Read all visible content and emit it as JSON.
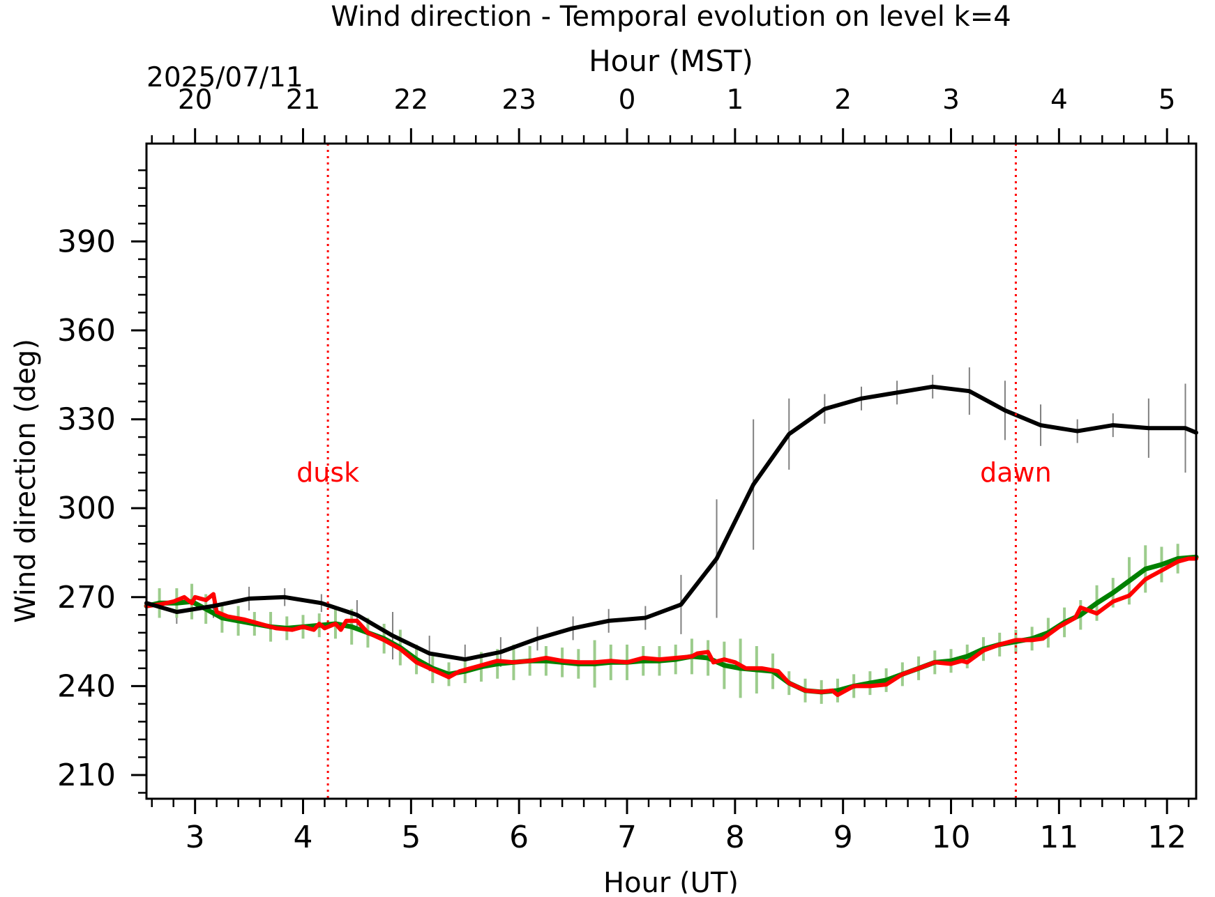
{
  "chart_data": {
    "type": "line",
    "title": "Wind direction - Temporal evolution on level k=4",
    "xlabel": "Hour (UT)",
    "top_xlabel": "Hour (MST)",
    "date_label": "2025/07/11",
    "ylabel": "Wind direction (deg)",
    "xlim": [
      2.55,
      12.27
    ],
    "ylim": [
      202,
      423
    ],
    "x_ticks": [
      3,
      4,
      5,
      6,
      7,
      8,
      9,
      10,
      11,
      12
    ],
    "x_tick_labels": [
      "3",
      "4",
      "5",
      "6",
      "7",
      "8",
      "9",
      "10",
      "11",
      "12"
    ],
    "top_x_ticks": [
      3,
      4,
      5,
      6,
      7,
      8,
      9,
      10,
      11,
      12
    ],
    "top_x_tick_labels": [
      "20",
      "21",
      "22",
      "23",
      "0",
      "1",
      "2",
      "3",
      "4",
      "5"
    ],
    "y_ticks": [
      210,
      240,
      270,
      300,
      330,
      360,
      390
    ],
    "y_tick_labels": [
      "210",
      "240",
      "270",
      "300",
      "330",
      "360",
      "390"
    ],
    "grid": false,
    "markers": [
      {
        "label": "dusk",
        "x": 4.23,
        "color": "#ff0000",
        "label_y": 309
      },
      {
        "label": "dawn",
        "x": 10.6,
        "color": "#ff0000",
        "label_y": 309
      }
    ],
    "series": [
      {
        "color": "#000000",
        "errorbar_color": "#808080",
        "line_width": 6,
        "x": [
          2.55,
          2.83,
          3.17,
          3.5,
          3.83,
          4.17,
          4.5,
          4.83,
          5.17,
          5.5,
          5.83,
          6.17,
          6.5,
          6.83,
          7.17,
          7.5,
          7.83,
          8.17,
          8.5,
          8.83,
          9.17,
          9.5,
          9.83,
          10.17,
          10.5,
          10.83,
          11.17,
          11.5,
          11.83,
          12.17,
          12.27
        ],
        "values": [
          268,
          265,
          267,
          269.5,
          270,
          268,
          264,
          257,
          251,
          249,
          251.5,
          256,
          259.5,
          262,
          263,
          267.5,
          283,
          308,
          325,
          333.5,
          337,
          339,
          341,
          339.5,
          333,
          328,
          326,
          328,
          327,
          327,
          325.5
        ],
        "err": [
          0,
          4,
          4,
          4,
          3,
          3,
          5,
          8,
          6,
          5,
          5,
          4,
          4,
          4,
          4,
          10,
          20,
          22,
          12,
          5,
          4,
          4,
          4,
          8,
          10,
          7,
          4,
          4,
          10,
          15,
          0
        ]
      },
      {
        "color": "#008000",
        "errorbar_color": "#9ccc8c",
        "line_width": 7,
        "x": [
          2.55,
          2.67,
          2.83,
          2.97,
          3.1,
          3.25,
          3.4,
          3.55,
          3.7,
          3.85,
          4.0,
          4.15,
          4.3,
          4.45,
          4.6,
          4.75,
          4.9,
          5.05,
          5.2,
          5.35,
          5.5,
          5.65,
          5.8,
          5.95,
          6.1,
          6.25,
          6.4,
          6.55,
          6.7,
          6.85,
          7.0,
          7.15,
          7.3,
          7.45,
          7.6,
          7.75,
          7.9,
          8.05,
          8.2,
          8.35,
          8.5,
          8.65,
          8.8,
          8.95,
          9.1,
          9.25,
          9.4,
          9.55,
          9.7,
          9.85,
          10.0,
          10.15,
          10.3,
          10.45,
          10.6,
          10.75,
          10.9,
          11.05,
          11.2,
          11.35,
          11.5,
          11.65,
          11.8,
          11.95,
          12.1,
          12.27
        ],
        "values": [
          267,
          268,
          268,
          268.5,
          266,
          263,
          262,
          261,
          260,
          259.5,
          260,
          260.5,
          261,
          260,
          258,
          256,
          253,
          249,
          246,
          244,
          245,
          246.5,
          247.5,
          248,
          248.5,
          248.5,
          248,
          247.5,
          247.5,
          248,
          248,
          248.5,
          248.5,
          249,
          250,
          249.5,
          247,
          246,
          245.5,
          245,
          241,
          238.5,
          238,
          238.5,
          240,
          241,
          242,
          244,
          246,
          248,
          248.5,
          250,
          252.5,
          254,
          255,
          256,
          258,
          261.5,
          264,
          268,
          271.5,
          275.5,
          279.5,
          281,
          283,
          283.5
        ],
        "err": [
          0,
          5,
          5,
          6,
          5,
          5,
          5,
          4,
          5,
          4,
          4,
          4,
          5,
          6,
          5,
          5,
          6,
          5,
          5,
          4,
          4,
          5,
          5,
          6,
          5,
          5,
          5,
          5,
          8,
          6,
          6,
          5,
          5,
          5,
          6,
          6,
          8,
          10,
          8,
          6,
          4,
          4,
          4,
          4,
          4,
          4,
          4,
          4,
          4,
          4,
          4,
          4,
          4,
          4,
          4,
          4,
          5,
          5,
          5,
          6,
          5,
          8,
          8,
          6,
          5,
          0
        ]
      },
      {
        "color": "#ff0000",
        "errorbar_color": "#f07070",
        "line_width": 6,
        "x": [
          2.55,
          2.67,
          2.8,
          2.9,
          2.97,
          3.0,
          3.1,
          3.17,
          3.2,
          3.3,
          3.45,
          3.6,
          3.75,
          3.9,
          4.0,
          4.1,
          4.15,
          4.2,
          4.3,
          4.35,
          4.4,
          4.5,
          4.6,
          4.75,
          4.9,
          5.05,
          5.2,
          5.35,
          5.45,
          5.5,
          5.65,
          5.8,
          5.95,
          6.1,
          6.25,
          6.4,
          6.55,
          6.7,
          6.85,
          7.0,
          7.15,
          7.3,
          7.45,
          7.6,
          7.65,
          7.75,
          7.8,
          7.9,
          8.0,
          8.1,
          8.25,
          8.4,
          8.5,
          8.65,
          8.8,
          8.9,
          8.95,
          9.1,
          9.25,
          9.4,
          9.55,
          9.7,
          9.85,
          10.0,
          10.1,
          10.15,
          10.3,
          10.45,
          10.6,
          10.75,
          10.85,
          11.0,
          11.15,
          11.2,
          11.35,
          11.5,
          11.65,
          11.8,
          11.9,
          11.95,
          12.1,
          12.2,
          12.27
        ],
        "values": [
          267,
          267.5,
          268.5,
          270,
          268,
          270,
          269,
          271,
          265,
          263.5,
          262.5,
          261,
          259.5,
          259,
          260,
          259,
          261,
          259.5,
          261,
          259,
          262,
          262,
          258,
          255.5,
          252.5,
          248,
          245.5,
          243,
          245,
          245.5,
          247,
          248.5,
          248,
          248.5,
          249.5,
          248.5,
          248,
          248,
          248.5,
          248,
          249.5,
          249,
          249.5,
          250,
          251,
          251.5,
          248,
          249,
          248,
          246,
          246,
          245,
          241,
          238.5,
          238,
          238.5,
          237,
          240,
          240,
          240.5,
          244,
          246,
          248,
          247.5,
          248.5,
          248,
          252,
          254,
          255.5,
          255.5,
          256,
          260,
          263,
          266.5,
          264.5,
          268.5,
          270.5,
          276,
          278,
          279,
          282,
          283,
          283
        ]
      }
    ]
  }
}
